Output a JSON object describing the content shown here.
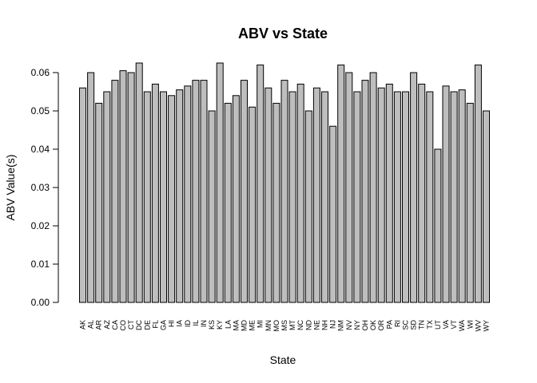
{
  "chart_data": {
    "type": "bar",
    "title": "ABV vs State",
    "xlabel": "State",
    "ylabel": "ABV Value(s)",
    "ylim": [
      0,
      0.06
    ],
    "yticks": [
      "0.00",
      "0.01",
      "0.02",
      "0.03",
      "0.04",
      "0.05",
      "0.06"
    ],
    "grid": false,
    "bar_color": "#bebebe",
    "categories": [
      "AK",
      "AL",
      "AR",
      "AZ",
      "CA",
      "CO",
      "CT",
      "DC",
      "DE",
      "FL",
      "GA",
      "HI",
      "IA",
      "ID",
      "IL",
      "IN",
      "KS",
      "KY",
      "LA",
      "MA",
      "MD",
      "ME",
      "MI",
      "MN",
      "MO",
      "MS",
      "MT",
      "NC",
      "ND",
      "NE",
      "NH",
      "NJ",
      "NM",
      "NV",
      "NY",
      "OH",
      "OK",
      "OR",
      "PA",
      "RI",
      "SC",
      "SD",
      "TN",
      "TX",
      "UT",
      "VA",
      "VT",
      "WA",
      "WI",
      "WV",
      "WY"
    ],
    "values": [
      0.056,
      0.06,
      0.052,
      0.055,
      0.058,
      0.0605,
      0.06,
      0.0625,
      0.055,
      0.057,
      0.055,
      0.054,
      0.0555,
      0.0565,
      0.058,
      0.058,
      0.05,
      0.0625,
      0.052,
      0.054,
      0.058,
      0.051,
      0.062,
      0.056,
      0.052,
      0.058,
      0.055,
      0.057,
      0.05,
      0.056,
      0.055,
      0.046,
      0.062,
      0.06,
      0.055,
      0.058,
      0.06,
      0.056,
      0.057,
      0.055,
      0.055,
      0.06,
      0.057,
      0.055,
      0.04,
      0.0565,
      0.055,
      0.0555,
      0.052,
      0.062,
      0.05
    ]
  }
}
